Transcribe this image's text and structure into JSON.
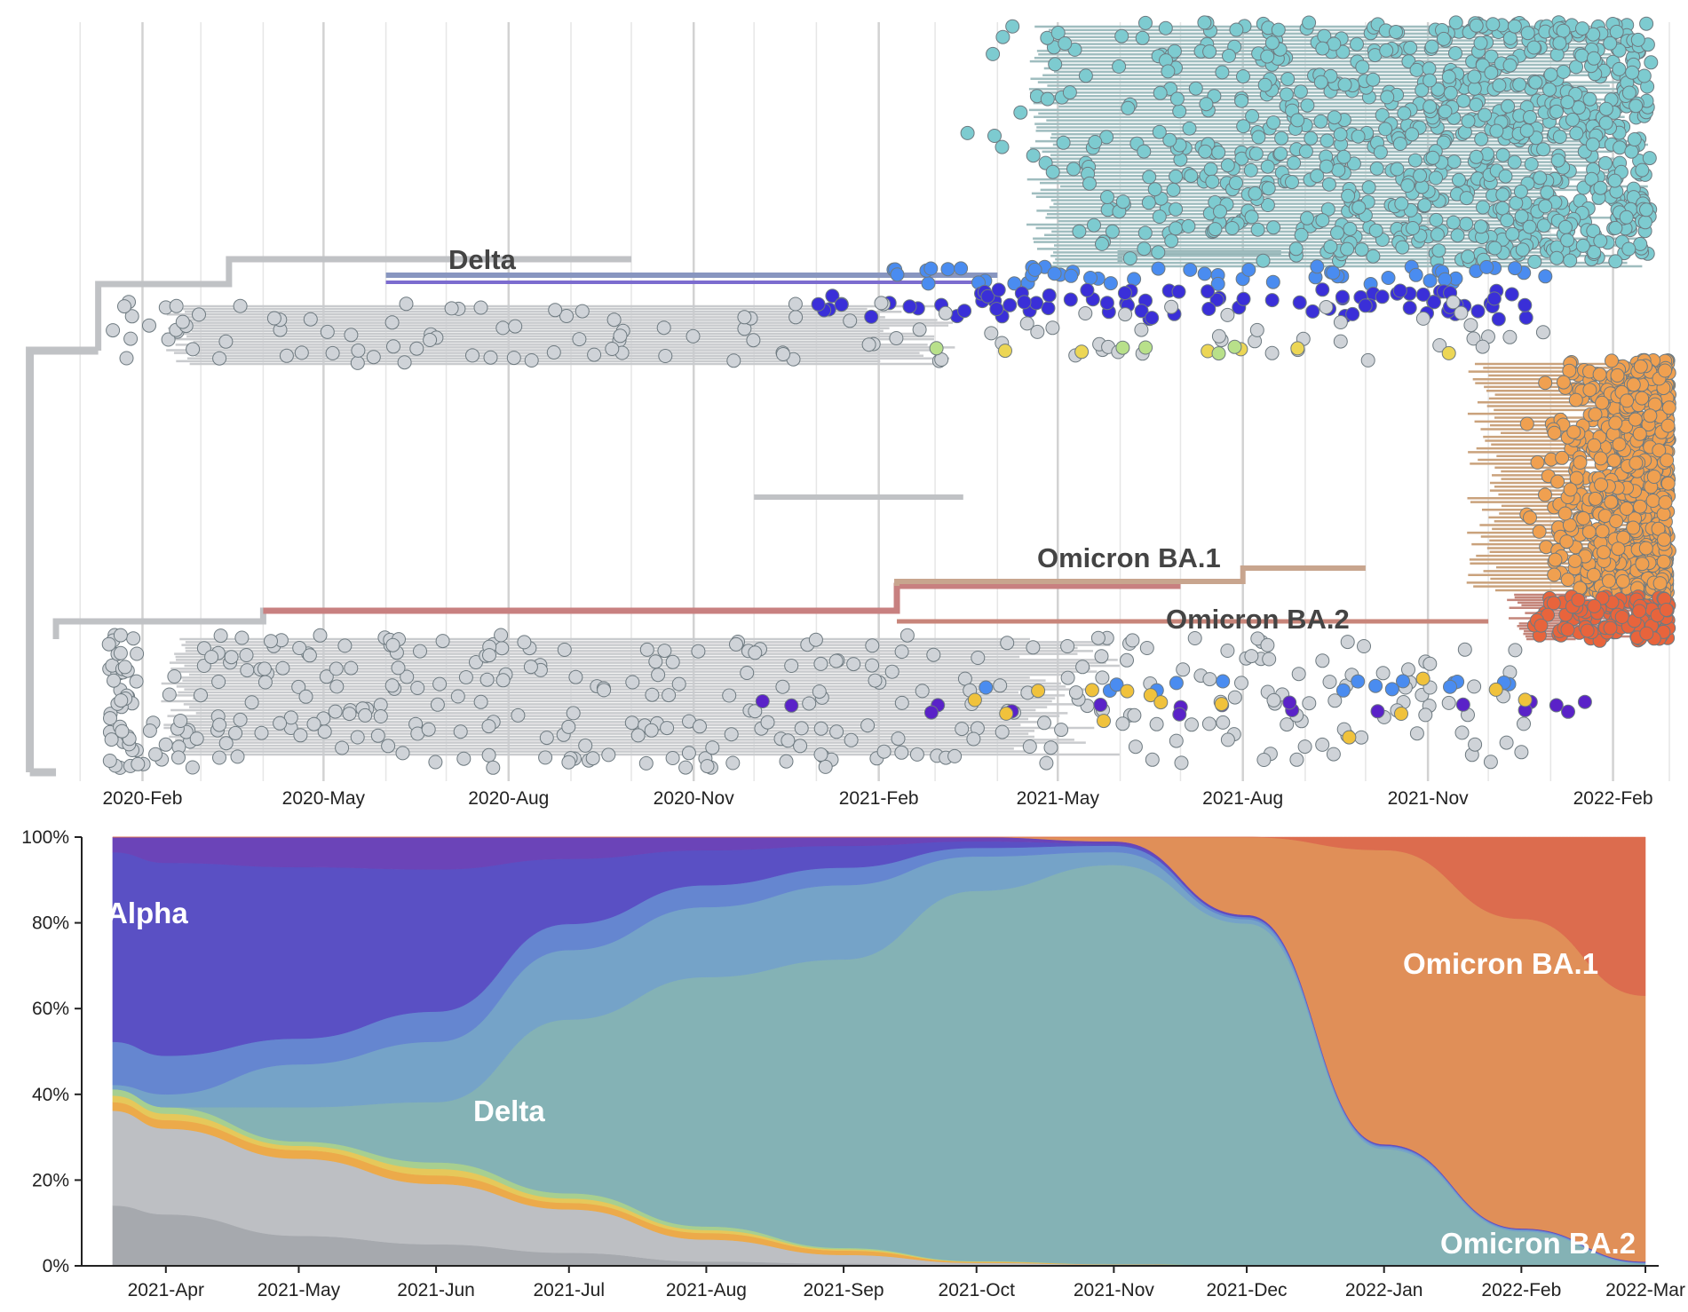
{
  "chart_data": [
    {
      "type": "scatter",
      "kind": "time-scaled phylogenetic tree",
      "x_axis": {
        "ticks": [
          "2020-Feb",
          "2020-May",
          "2020-Aug",
          "2020-Nov",
          "2021-Feb",
          "2021-May",
          "2021-Aug",
          "2021-Nov",
          "2022-Feb"
        ],
        "range": [
          "2019-12-01",
          "2022-03-01"
        ],
        "grid": true
      },
      "clade_labels": [
        "Delta",
        "Omicron BA.1",
        "Omicron BA.2"
      ],
      "clades": [
        {
          "label": "Delta",
          "color": "#7dcbd0",
          "branch_color": "#96b4b6",
          "tip_dates": [
            "2021-03-10",
            "2022-02-20"
          ],
          "approx_tip_count": 900
        },
        {
          "label": "Omicron BA.1",
          "color": "#f0a050",
          "branch_color": "#caa27c",
          "tip_dates": [
            "2021-12-10",
            "2022-03-01"
          ],
          "approx_tip_count": 800
        },
        {
          "label": "Omicron BA.2",
          "color": "#e8643c",
          "branch_color": "#c4857a",
          "tip_dates": [
            "2021-12-20",
            "2022-03-01"
          ],
          "approx_tip_count": 150
        },
        {
          "color": "#4a8cf0",
          "tip_dates": [
            "2021-02-01",
            "2022-01-01"
          ]
        },
        {
          "color": "#3a2fd8",
          "tip_dates": [
            "2021-01-01",
            "2021-12-20"
          ]
        },
        {
          "color": "#5a22c8",
          "tip_dates": [
            "2020-11-01",
            "2022-01-20"
          ]
        },
        {
          "color": "#f0c23c",
          "tip_dates": [
            "2021-03-01",
            "2021-12-25"
          ]
        },
        {
          "color": "#ecd655",
          "tip_dates": [
            "2021-03-10",
            "2021-12-20"
          ]
        },
        {
          "color": "#b8e08a",
          "tip_dates": [
            "2021-03-01",
            "2021-08-01"
          ]
        },
        {
          "color": "#cfd3d8",
          "tip_dates": [
            "2020-01-15",
            "2021-12-30"
          ]
        }
      ]
    },
    {
      "type": "area",
      "stacked": "normalized",
      "x": [
        "2021-03-20",
        "2021-04-01",
        "2021-05-01",
        "2021-06-01",
        "2021-07-01",
        "2021-08-01",
        "2021-09-01",
        "2021-10-01",
        "2021-11-01",
        "2021-12-01",
        "2022-01-01",
        "2022-02-01",
        "2022-03-01"
      ],
      "x_ticks": [
        "2021-Apr",
        "2021-May",
        "2021-Jun",
        "2021-Jul",
        "2021-Aug",
        "2021-Sep",
        "2021-Oct",
        "2021-Nov",
        "2021-Dec",
        "2022-Jan",
        "2022-Feb",
        "2022-Mar"
      ],
      "y_ticks": [
        "0%",
        "20%",
        "40%",
        "60%",
        "80%",
        "100%"
      ],
      "ylim": [
        0,
        100
      ],
      "legend": "labels drawn inside areas",
      "series": [
        {
          "color": "#a6a9ae",
          "values": [
            14,
            12,
            7,
            5,
            3,
            1,
            0.5,
            0.2,
            0.1,
            0.1,
            0,
            0,
            0
          ]
        },
        {
          "color": "#bdbfc3",
          "values": [
            22,
            20,
            18,
            14,
            10,
            5,
            2,
            0.5,
            0.2,
            0.1,
            0,
            0,
            0
          ]
        },
        {
          "color": "#ecaa4a",
          "values": [
            2,
            2,
            2,
            2,
            1.5,
            1.5,
            1,
            0.2,
            0.1,
            0,
            0,
            0,
            0
          ]
        },
        {
          "color": "#e6c85a",
          "values": [
            1.5,
            1.5,
            1,
            1.5,
            1,
            0.7,
            0.3,
            0.1,
            0,
            0,
            0,
            0,
            0
          ]
        },
        {
          "color": "#a7cf90",
          "values": [
            1.5,
            1.5,
            1,
            1.5,
            1.2,
            0.8,
            0.3,
            0.1,
            0,
            0,
            0,
            0,
            0
          ]
        },
        {
          "name": "Delta",
          "color": "#84b2b5",
          "values": [
            0,
            0,
            8,
            14,
            40,
            57,
            66,
            86,
            93,
            79,
            27,
            8,
            0.5
          ]
        },
        {
          "color": "#75a3c8",
          "values": [
            1,
            3,
            10,
            14,
            16,
            16,
            17,
            8,
            3,
            1,
            0.5,
            0.3,
            0.2
          ]
        },
        {
          "color": "#6586d0",
          "values": [
            10,
            9,
            6,
            7,
            6,
            5,
            4,
            2,
            1.5,
            0.5,
            0.3,
            0.2,
            0.1
          ]
        },
        {
          "name": "Alpha",
          "color": "#5a50c4",
          "values": [
            44,
            45,
            40,
            33,
            15,
            8,
            5,
            1.5,
            0.5,
            0.3,
            0.2,
            0.1,
            0.1
          ]
        },
        {
          "color": "#6b44b8",
          "values": [
            3.5,
            6,
            7,
            7.5,
            5,
            3,
            2,
            1,
            0.5,
            0.2,
            0.1,
            0.1,
            0.1
          ]
        },
        {
          "name": "Omicron BA.1",
          "color": "#e08f58",
          "values": [
            0,
            0,
            0,
            0,
            0,
            0,
            0,
            0,
            1,
            18,
            68,
            72,
            62
          ]
        },
        {
          "name": "Omicron BA.2",
          "color": "#dc6c4e",
          "values": [
            0,
            0,
            0,
            0,
            0,
            0,
            0,
            0,
            0,
            0,
            3,
            19,
            37
          ]
        }
      ]
    }
  ]
}
